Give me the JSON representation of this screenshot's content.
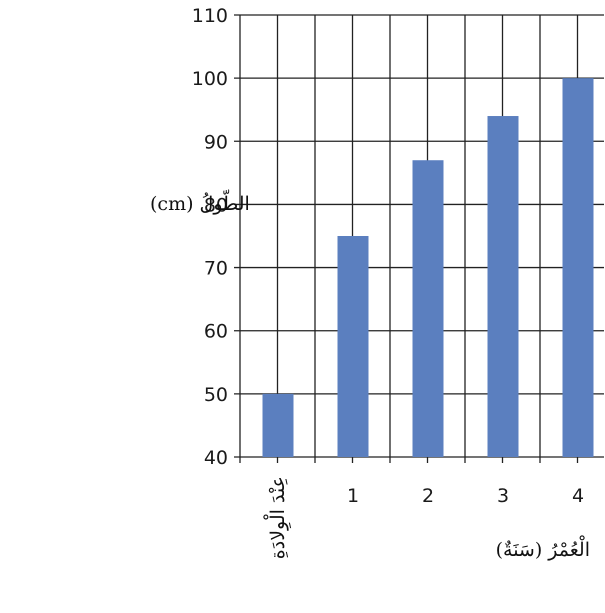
{
  "chart_data": {
    "type": "bar",
    "categories": [
      "عِنْدَ الْوِلادَةِ",
      "1",
      "2",
      "3",
      "4"
    ],
    "values": [
      50,
      75,
      87,
      94,
      100
    ],
    "title": "",
    "xlabel": "الْعُمْرُ (سَنَةٌ)",
    "ylabel": "الطّولُ (cm)",
    "ylim": [
      40,
      110
    ],
    "yticks": [
      40,
      50,
      60,
      70,
      80,
      90,
      100,
      110
    ],
    "grid": true,
    "bar_color": "#5b7fbf"
  }
}
